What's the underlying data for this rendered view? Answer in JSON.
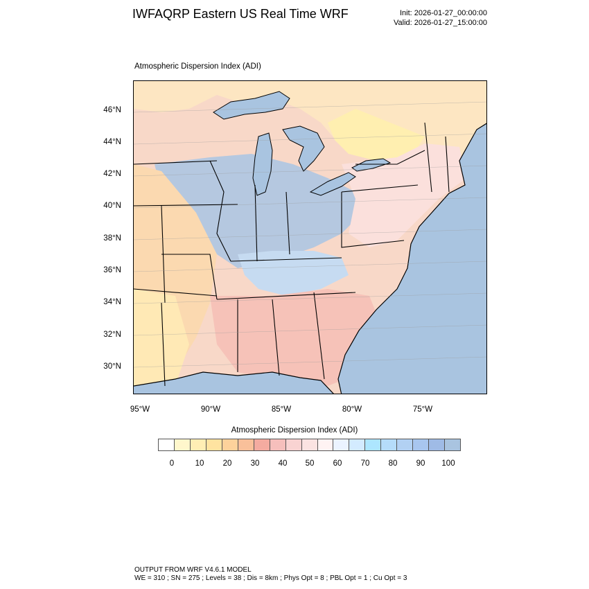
{
  "header": {
    "title": "IWFAQRP Eastern US Real Time WRF",
    "init": "Init: 2026-01-27_00:00:00",
    "valid": "Valid: 2026-01-27_15:00:00"
  },
  "map": {
    "subtitle": "Atmospheric Dispersion Index   (ADI)",
    "lat_labels": [
      "46°N",
      "44°N",
      "42°N",
      "40°N",
      "38°N",
      "36°N",
      "34°N",
      "32°N",
      "30°N"
    ],
    "lon_labels": [
      "95°W",
      "90°W",
      "85°W",
      "80°W",
      "75°W"
    ],
    "ocean_color": "#a9c4e0",
    "lake_color": "#a9c4e0"
  },
  "colorbar": {
    "title": "Atmospheric Dispersion Index  (ADI)",
    "colors": [
      "#ffffff",
      "#fff7cc",
      "#ffeeb4",
      "#ffe3a0",
      "#fdd29b",
      "#f9c09a",
      "#f4aba0",
      "#f6bfbc",
      "#f9d3d2",
      "#fbe3e2",
      "#fff3f3",
      "#ebf3ff",
      "#d3ebff",
      "#ade6ff",
      "#b5dcfa",
      "#b2d1f3",
      "#a8c6ef",
      "#9fbbe6",
      "#a9c4e0"
    ],
    "labels": [
      "0",
      "10",
      "20",
      "30",
      "40",
      "50",
      "60",
      "70",
      "80",
      "90",
      "100"
    ]
  },
  "footer": {
    "line1": "OUTPUT FROM WRF V4.6.1 MODEL",
    "line2": "WE = 310 ; SN = 275 ; Levels = 38 ; Dis = 8km ; Phys Opt = 8 ; PBL Opt = 1 ; Cu Opt = 3"
  }
}
